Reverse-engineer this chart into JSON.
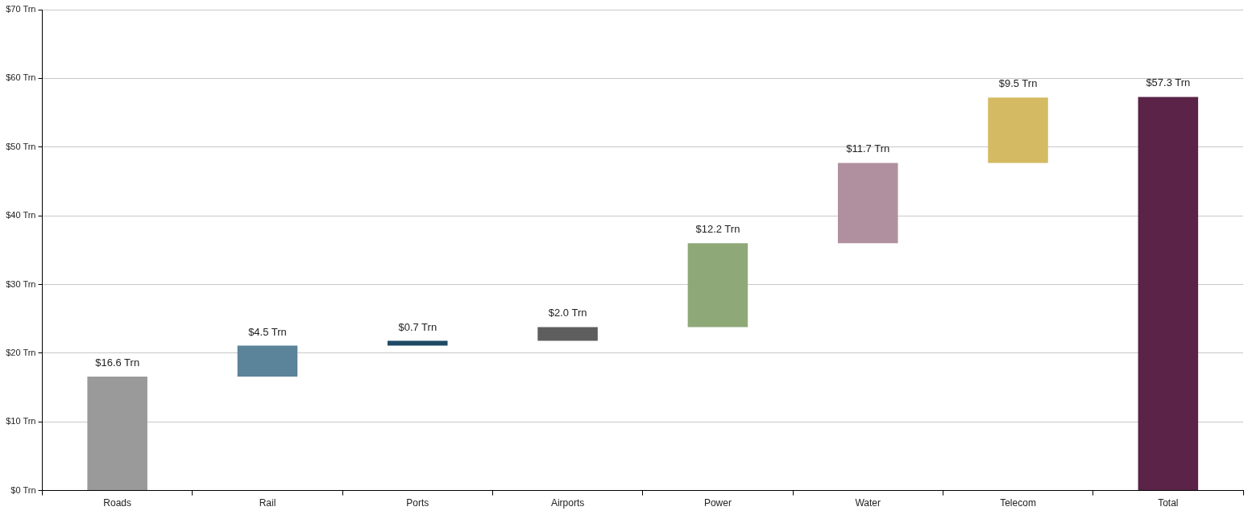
{
  "chart_data": {
    "type": "bar",
    "categories": [
      "Roads",
      "Rail",
      "Ports",
      "Airports",
      "Power",
      "Water",
      "Telecom",
      "Total"
    ],
    "values": [
      16.6,
      4.5,
      0.7,
      2.0,
      12.2,
      11.7,
      9.5,
      57.3
    ],
    "base": [
      0,
      16.6,
      21.1,
      21.8,
      23.8,
      36.0,
      47.7,
      0
    ],
    "colors": [
      "#9a9a9a",
      "#5b8399",
      "#1f4a66",
      "#5e5e5e",
      "#8fa878",
      "#b0909f",
      "#d4ba62",
      "#5a2347"
    ],
    "value_labels": [
      "$16.6 Trn",
      "$4.5 Trn",
      "$0.7 Trn",
      "$2.0 Trn",
      "$12.2 Trn",
      "$11.7 Trn",
      "$9.5 Trn",
      "$57.3 Trn"
    ],
    "ylim": [
      0,
      70
    ],
    "yticks": [
      {
        "value": 0,
        "label": "$0 Trn"
      },
      {
        "value": 10,
        "label": "$10 Trn"
      },
      {
        "value": 20,
        "label": "$20 Trn"
      },
      {
        "value": 30,
        "label": "$30 Trn"
      },
      {
        "value": 40,
        "label": "$40 Trn"
      },
      {
        "value": 50,
        "label": "$50 Trn"
      },
      {
        "value": 60,
        "label": "$60 Trn"
      },
      {
        "value": 70,
        "label": "$70 Trn"
      }
    ],
    "grid": "y"
  }
}
